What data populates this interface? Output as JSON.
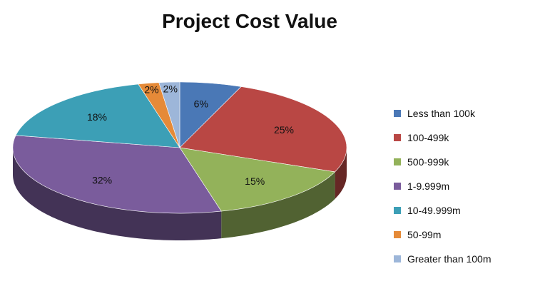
{
  "chart_data": {
    "type": "pie",
    "title": "Project Cost Value",
    "three_d": true,
    "legend_position": "right",
    "categories": [
      "Less than 100k",
      "100-499k",
      "500-999k",
      "1-9.999m",
      "10-49.999m",
      "50-99m",
      "Greater than 100m"
    ],
    "values": [
      6,
      25,
      15,
      32,
      18,
      2,
      2
    ],
    "data_labels": [
      "6%",
      "25%",
      "15%",
      "32%",
      "18%",
      "2%",
      "2%"
    ],
    "colors": [
      "#4a78b6",
      "#b94744",
      "#93b25a",
      "#7a5c9c",
      "#3c9fb6",
      "#e58a38",
      "#9db6d9"
    ]
  }
}
